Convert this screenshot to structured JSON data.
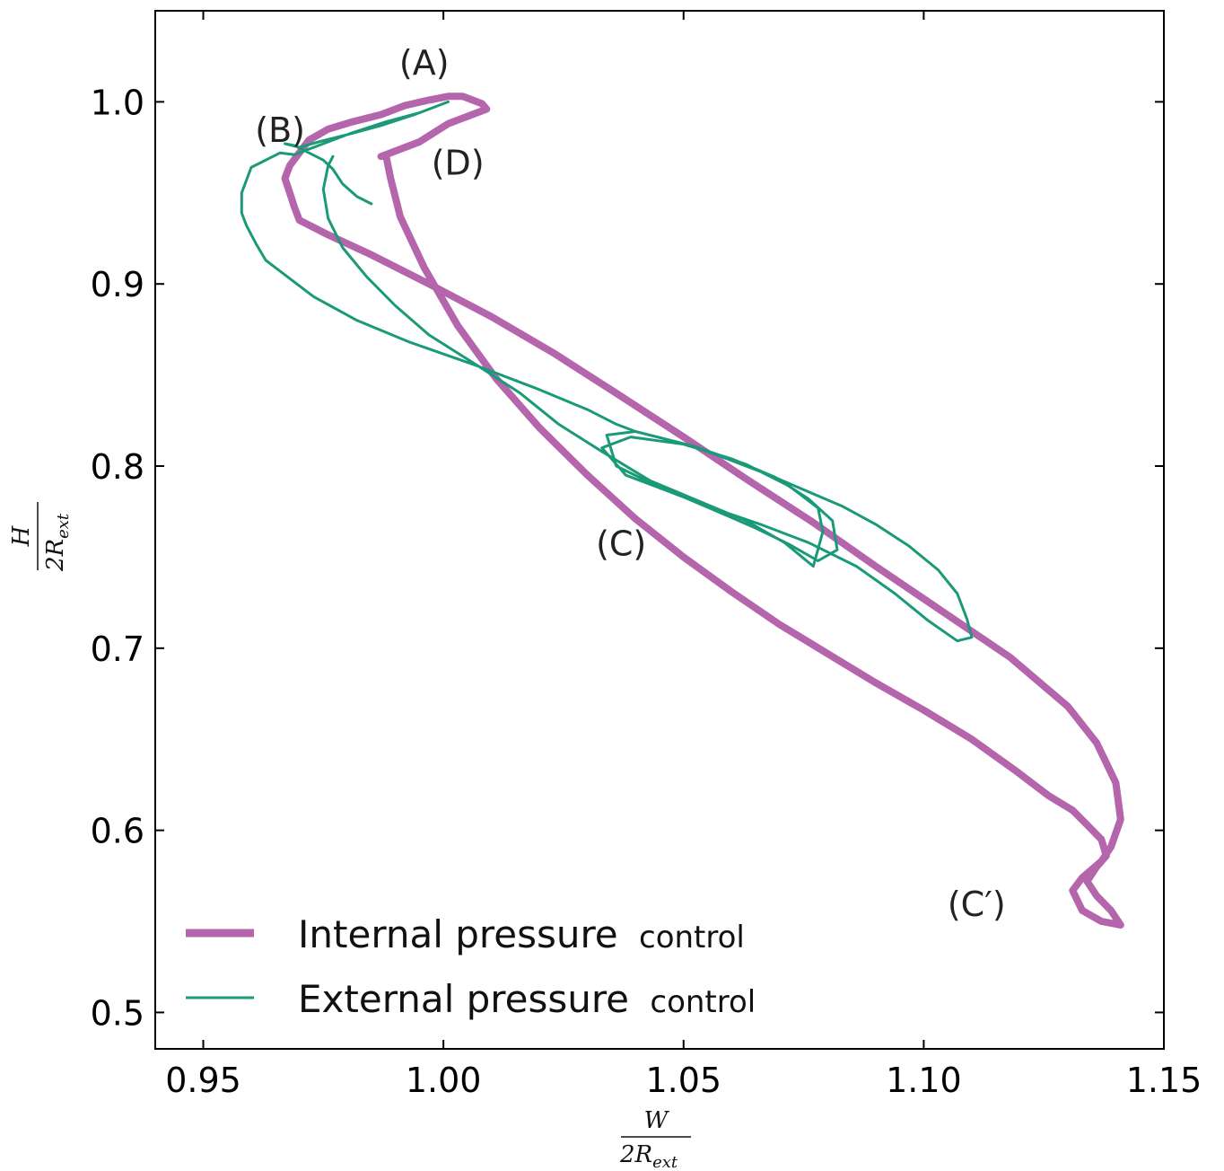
{
  "chart_data": {
    "type": "line",
    "title": "",
    "xlabel_num": "W",
    "xlabel_den": "2R",
    "xlabel_sub": "ext",
    "ylabel_num": "H",
    "ylabel_den": "2R",
    "ylabel_sub": "ext",
    "xlim": [
      0.94,
      1.15
    ],
    "ylim": [
      0.48,
      1.05
    ],
    "xticks": [
      0.95,
      1.0,
      1.05,
      1.1,
      1.15
    ],
    "xtick_labels": [
      "0.95",
      "1.00",
      "1.05",
      "1.10",
      "1.15"
    ],
    "yticks": [
      0.5,
      0.6,
      0.7,
      0.8,
      0.9,
      1.0
    ],
    "ytick_labels": [
      "0.5",
      "0.6",
      "0.7",
      "0.8",
      "0.9",
      "1.0"
    ],
    "grid": false,
    "legend_position": "bottom-left",
    "series": [
      {
        "name": "Internal pressure",
        "name_suffix": "control",
        "color": "#b565ac",
        "points": [
          [
            0.987,
            0.97
          ],
          [
            0.989,
            0.972
          ],
          [
            0.992,
            0.975
          ],
          [
            0.995,
            0.978
          ],
          [
            0.998,
            0.983
          ],
          [
            1.001,
            0.988
          ],
          [
            1.005,
            0.992
          ],
          [
            1.009,
            0.996
          ],
          [
            1.008,
            0.999
          ],
          [
            1.004,
            1.003
          ],
          [
            1.001,
            1.003
          ],
          [
            0.997,
            1.001
          ],
          [
            0.992,
            0.998
          ],
          [
            0.987,
            0.993
          ],
          [
            0.981,
            0.989
          ],
          [
            0.976,
            0.985
          ],
          [
            0.972,
            0.979
          ],
          [
            0.97,
            0.972
          ],
          [
            0.968,
            0.965
          ],
          [
            0.967,
            0.958
          ],
          [
            0.968,
            0.95
          ],
          [
            0.969,
            0.942
          ],
          [
            0.97,
            0.935
          ],
          [
            0.976,
            0.927
          ],
          [
            0.985,
            0.916
          ],
          [
            0.997,
            0.9
          ],
          [
            1.01,
            0.882
          ],
          [
            1.023,
            0.862
          ],
          [
            1.036,
            0.84
          ],
          [
            1.05,
            0.816
          ],
          [
            1.063,
            0.793
          ],
          [
            1.077,
            0.769
          ],
          [
            1.09,
            0.745
          ],
          [
            1.104,
            0.72
          ],
          [
            1.118,
            0.695
          ],
          [
            1.13,
            0.668
          ],
          [
            1.136,
            0.648
          ],
          [
            1.14,
            0.626
          ],
          [
            1.141,
            0.606
          ],
          [
            1.139,
            0.591
          ],
          [
            1.137,
            0.583
          ],
          [
            1.133,
            0.574
          ],
          [
            1.131,
            0.567
          ],
          [
            1.133,
            0.556
          ],
          [
            1.137,
            0.55
          ],
          [
            1.141,
            0.548
          ],
          [
            1.139,
            0.556
          ],
          [
            1.136,
            0.564
          ],
          [
            1.134,
            0.572
          ],
          [
            1.136,
            0.58
          ],
          [
            1.138,
            0.586
          ],
          [
            1.137,
            0.595
          ],
          [
            1.134,
            0.603
          ],
          [
            1.131,
            0.611
          ],
          [
            1.126,
            0.619
          ],
          [
            1.119,
            0.633
          ],
          [
            1.11,
            0.65
          ],
          [
            1.1,
            0.666
          ],
          [
            1.09,
            0.681
          ],
          [
            1.08,
            0.697
          ],
          [
            1.07,
            0.713
          ],
          [
            1.06,
            0.731
          ],
          [
            1.05,
            0.75
          ],
          [
            1.04,
            0.771
          ],
          [
            1.03,
            0.795
          ],
          [
            1.02,
            0.821
          ],
          [
            1.011,
            0.848
          ],
          [
            1.003,
            0.877
          ],
          [
            0.996,
            0.909
          ],
          [
            0.991,
            0.937
          ],
          [
            0.989,
            0.958
          ],
          [
            0.988,
            0.971
          ]
        ]
      },
      {
        "name": "External pressure",
        "name_suffix": "control",
        "color": "#1a9a78",
        "points": [
          [
            0.985,
            0.944
          ],
          [
            0.982,
            0.948
          ],
          [
            0.979,
            0.955
          ],
          [
            0.977,
            0.963
          ],
          [
            0.975,
            0.968
          ],
          [
            0.972,
            0.972
          ],
          [
            0.969,
            0.976
          ],
          [
            0.967,
            0.977
          ],
          [
            0.97,
            0.975
          ],
          [
            0.974,
            0.978
          ],
          [
            0.98,
            0.982
          ],
          [
            0.987,
            0.987
          ],
          [
            0.994,
            0.993
          ],
          [
            1.001,
            1.0
          ],
          [
            0.995,
            0.994
          ],
          [
            0.988,
            0.989
          ],
          [
            0.981,
            0.983
          ],
          [
            0.975,
            0.977
          ],
          [
            0.969,
            0.971
          ],
          [
            0.966,
            0.972
          ],
          [
            0.96,
            0.964
          ],
          [
            0.958,
            0.95
          ],
          [
            0.958,
            0.939
          ],
          [
            0.959,
            0.932
          ],
          [
            0.961,
            0.922
          ],
          [
            0.963,
            0.913
          ],
          [
            0.967,
            0.905
          ],
          [
            0.973,
            0.893
          ],
          [
            0.982,
            0.88
          ],
          [
            0.993,
            0.868
          ],
          [
            1.006,
            0.856
          ],
          [
            1.019,
            0.843
          ],
          [
            1.03,
            0.831
          ],
          [
            1.036,
            0.823
          ],
          [
            1.04,
            0.819
          ],
          [
            1.046,
            0.815
          ],
          [
            1.053,
            0.81
          ],
          [
            1.06,
            0.803
          ],
          [
            1.068,
            0.795
          ],
          [
            1.075,
            0.787
          ],
          [
            1.083,
            0.778
          ],
          [
            1.09,
            0.768
          ],
          [
            1.097,
            0.756
          ],
          [
            1.103,
            0.743
          ],
          [
            1.107,
            0.73
          ],
          [
            1.109,
            0.716
          ],
          [
            1.11,
            0.706
          ],
          [
            1.107,
            0.704
          ],
          [
            1.101,
            0.715
          ],
          [
            1.094,
            0.73
          ],
          [
            1.086,
            0.745
          ],
          [
            1.076,
            0.758
          ],
          [
            1.066,
            0.768
          ],
          [
            1.056,
            0.777
          ],
          [
            1.046,
            0.787
          ],
          [
            1.038,
            0.795
          ],
          [
            1.033,
            0.81
          ],
          [
            1.039,
            0.816
          ],
          [
            1.05,
            0.812
          ],
          [
            1.06,
            0.804
          ],
          [
            1.069,
            0.794
          ],
          [
            1.076,
            0.782
          ],
          [
            1.081,
            0.77
          ],
          [
            1.082,
            0.754
          ],
          [
            1.078,
            0.748
          ],
          [
            1.072,
            0.757
          ],
          [
            1.065,
            0.766
          ],
          [
            1.058,
            0.774
          ],
          [
            1.05,
            0.783
          ],
          [
            1.043,
            0.791
          ],
          [
            1.036,
            0.8
          ],
          [
            1.034,
            0.817
          ],
          [
            1.04,
            0.819
          ],
          [
            1.052,
            0.811
          ],
          [
            1.063,
            0.801
          ],
          [
            1.072,
            0.789
          ],
          [
            1.078,
            0.777
          ],
          [
            1.079,
            0.764
          ],
          [
            1.077,
            0.745
          ],
          [
            1.071,
            0.758
          ],
          [
            1.063,
            0.77
          ],
          [
            1.053,
            0.781
          ],
          [
            1.043,
            0.792
          ],
          [
            1.033,
            0.808
          ],
          [
            1.024,
            0.823
          ],
          [
            1.016,
            0.84
          ],
          [
            1.006,
            0.857
          ],
          [
            0.997,
            0.872
          ],
          [
            0.99,
            0.888
          ],
          [
            0.984,
            0.904
          ],
          [
            0.979,
            0.92
          ],
          [
            0.976,
            0.936
          ],
          [
            0.975,
            0.952
          ],
          [
            0.976,
            0.965
          ],
          [
            0.977,
            0.97
          ]
        ]
      }
    ],
    "annotations": [
      {
        "text": "(A)",
        "x": 0.996,
        "y": 1.015
      },
      {
        "text": "(B)",
        "x": 0.966,
        "y": 0.978
      },
      {
        "text": "(C)",
        "x": 1.037,
        "y": 0.751
      },
      {
        "text": "(D)",
        "x": 1.003,
        "y": 0.96
      },
      {
        "text": "(C′)",
        "x": 1.111,
        "y": 0.553
      }
    ]
  }
}
